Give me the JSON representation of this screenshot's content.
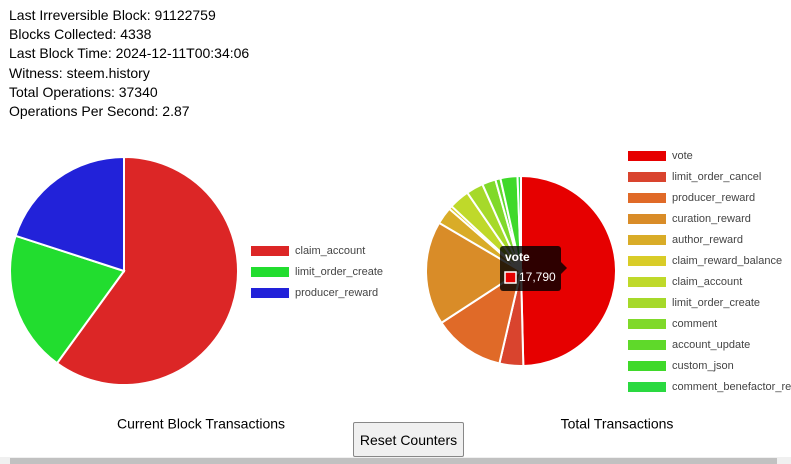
{
  "stats": [
    "Last Irreversible Block: 91122759",
    "Blocks Collected: 4338",
    "Last Block Time: 2024-12-11T00:34:06",
    "Witness: steem.history",
    "Total Operations: 37340",
    "Operations Per Second: 2.87"
  ],
  "chart_data": [
    {
      "type": "pie",
      "title": "Current Block Transactions",
      "categories": [
        "claim_account",
        "limit_order_create",
        "producer_reward"
      ],
      "values": [
        60,
        20,
        20
      ],
      "colors": [
        "#dc2626",
        "#22dd2f",
        "#2222d9"
      ]
    },
    {
      "type": "pie",
      "title": "Total Transactions",
      "categories": [
        "vote",
        "limit_order_cancel",
        "producer_reward",
        "curation_reward",
        "author_reward",
        "claim_reward_balance",
        "claim_account",
        "limit_order_create",
        "comment",
        "account_update",
        "custom_json",
        "comment_benefactor_re"
      ],
      "values": [
        17790,
        1450,
        4360,
        6330,
        1040,
        210,
        1250,
        1040,
        830,
        310,
        1040,
        210
      ],
      "colors": [
        "#e60000",
        "#d9442e",
        "#e06a28",
        "#d98c28",
        "#d9ac28",
        "#d9cc28",
        "#bfd92a",
        "#a6d92a",
        "#80d92a",
        "#5fd92a",
        "#3fd92a",
        "#2ad940"
      ],
      "tooltip_value": "17,790"
    }
  ],
  "button": "Reset Counters"
}
